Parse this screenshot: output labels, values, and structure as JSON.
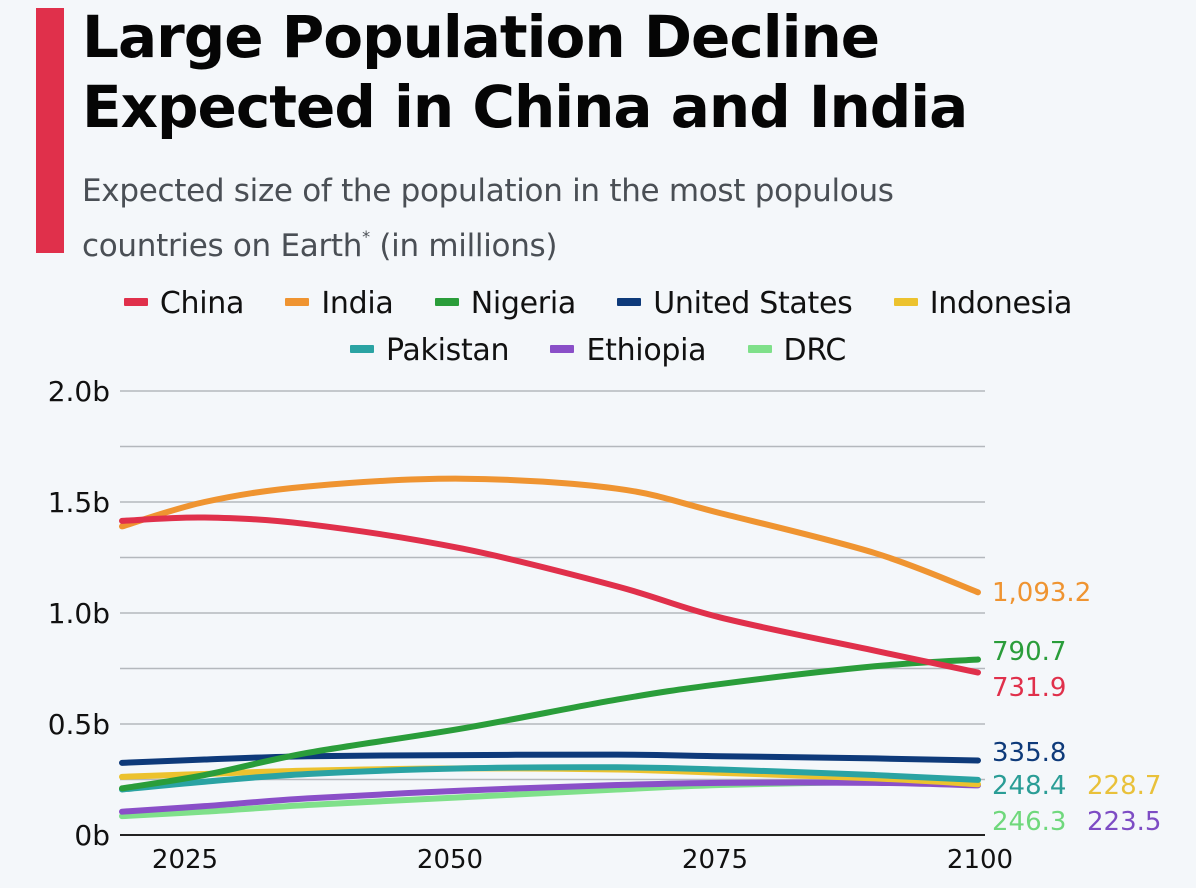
{
  "header": {
    "title_line1": "Large Population Decline",
    "title_line2": "Expected in China and India",
    "subtitle_line1": "Expected size of the population in the most populous",
    "subtitle_line2_prefix": "countries on Earth",
    "subtitle_footnote_mark": "*",
    "subtitle_line2_suffix": " (in millions)",
    "accent_color": "#e0304b"
  },
  "legend": {
    "row1": [
      {
        "name": "China",
        "color": "#e0304b"
      },
      {
        "name": "India",
        "color": "#ef9431"
      },
      {
        "name": "Nigeria",
        "color": "#2a9d3a"
      },
      {
        "name": "United States",
        "color": "#0e3a7a"
      },
      {
        "name": "Indonesia",
        "color": "#ecc22e"
      }
    ],
    "row2": [
      {
        "name": "Pakistan",
        "color": "#2aa3a3"
      },
      {
        "name": "Ethiopia",
        "color": "#8a4fc8"
      },
      {
        "name": "DRC",
        "color": "#7fe08a"
      }
    ]
  },
  "chart_data": {
    "type": "line",
    "title": "Large Population Decline Expected in China and India",
    "subtitle": "Expected size of the population in the most populous countries on Earth* (in millions)",
    "xlabel": "",
    "ylabel": "",
    "x": [
      2017,
      2025,
      2035,
      2050,
      2065,
      2075,
      2090,
      2100
    ],
    "xlim": [
      2017,
      2100
    ],
    "ylim": [
      0,
      2000
    ],
    "y_ticks": [
      0,
      250,
      500,
      750,
      1000,
      1250,
      1500,
      1750,
      2000
    ],
    "y_tick_labels": [
      {
        "value": 0,
        "label": "0b"
      },
      {
        "value": 500,
        "label": "0.5b"
      },
      {
        "value": 1000,
        "label": "1.0b"
      },
      {
        "value": 1500,
        "label": "1.5b"
      },
      {
        "value": 2000,
        "label": "2.0b"
      }
    ],
    "x_tick_labels": [
      {
        "value": 2025,
        "label": "2025"
      },
      {
        "value": 2050,
        "label": "2050"
      },
      {
        "value": 2075,
        "label": "2075"
      },
      {
        "value": 2100,
        "label": "2100"
      }
    ],
    "grid": true,
    "legend_position": "top-center",
    "series": [
      {
        "name": "India",
        "color": "#ef9431",
        "values": [
          1390,
          1500,
          1570,
          1605,
          1560,
          1450,
          1270,
          1093.2
        ],
        "end_label": "1,093.2"
      },
      {
        "name": "China",
        "color": "#e0304b",
        "values": [
          1415,
          1430,
          1400,
          1290,
          1120,
          980,
          830,
          731.9
        ],
        "end_label": "731.9"
      },
      {
        "name": "Nigeria",
        "color": "#2a9d3a",
        "values": [
          210,
          270,
          370,
          480,
          610,
          680,
          760,
          790.7
        ],
        "end_label": "790.7"
      },
      {
        "name": "United States",
        "color": "#0e3a7a",
        "values": [
          325,
          340,
          355,
          360,
          362,
          355,
          345,
          335.8
        ],
        "end_label": "335.8"
      },
      {
        "name": "Pakistan",
        "color": "#2aa3a3",
        "values": [
          205,
          240,
          275,
          300,
          305,
          295,
          270,
          248.4
        ],
        "end_label": "248.4"
      },
      {
        "name": "Indonesia",
        "color": "#ecc22e",
        "values": [
          262,
          275,
          290,
          300,
          295,
          280,
          255,
          228.7
        ],
        "end_label": "228.7"
      },
      {
        "name": "Ethiopia",
        "color": "#8a4fc8",
        "values": [
          105,
          130,
          165,
          200,
          225,
          235,
          235,
          223.5
        ],
        "end_label": "223.5"
      },
      {
        "name": "DRC",
        "color": "#7fe08a",
        "values": [
          85,
          105,
          135,
          170,
          205,
          225,
          240,
          246.3
        ],
        "end_label": "246.3"
      }
    ]
  }
}
